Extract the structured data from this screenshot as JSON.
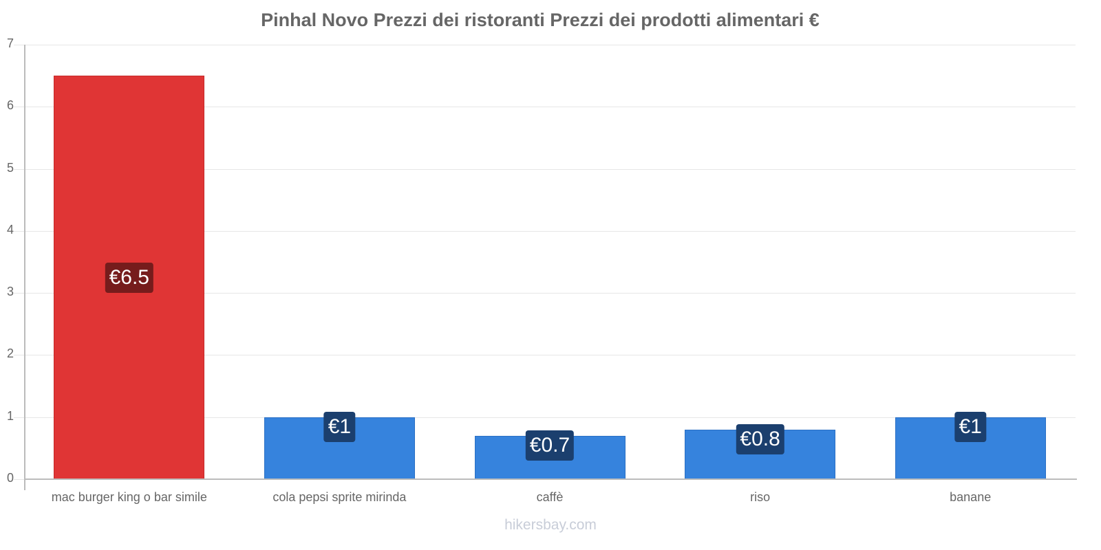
{
  "chart_data": {
    "type": "bar",
    "title": "Pinhal Novo Prezzi dei ristoranti Prezzi dei prodotti alimentari €",
    "xlabel": "",
    "ylabel": "",
    "ylim": [
      0,
      7
    ],
    "yticks": [
      "0",
      "1",
      "2",
      "3",
      "4",
      "5",
      "6",
      "7"
    ],
    "grid": true,
    "legend": null,
    "categories": [
      "mac burger king o bar simile",
      "cola pepsi sprite mirinda",
      "caffè",
      "riso",
      "banane"
    ],
    "values": [
      6.5,
      1,
      0.7,
      0.8,
      1
    ],
    "data_labels": [
      "€6.5",
      "€1",
      "€0.7",
      "€0.8",
      "€1"
    ],
    "bar_colors": [
      "#e03535",
      "#3683dd",
      "#3683dd",
      "#3683dd",
      "#3683dd"
    ]
  },
  "colors": {
    "highlight_bar": "#e03535",
    "highlight_label_bg": "#761c1c",
    "normal_bar": "#3683dd",
    "normal_label_bg": "#1b3f6e",
    "title": "#666666",
    "watermark": "#c8cdd8"
  },
  "watermark": "hikersbay.com"
}
